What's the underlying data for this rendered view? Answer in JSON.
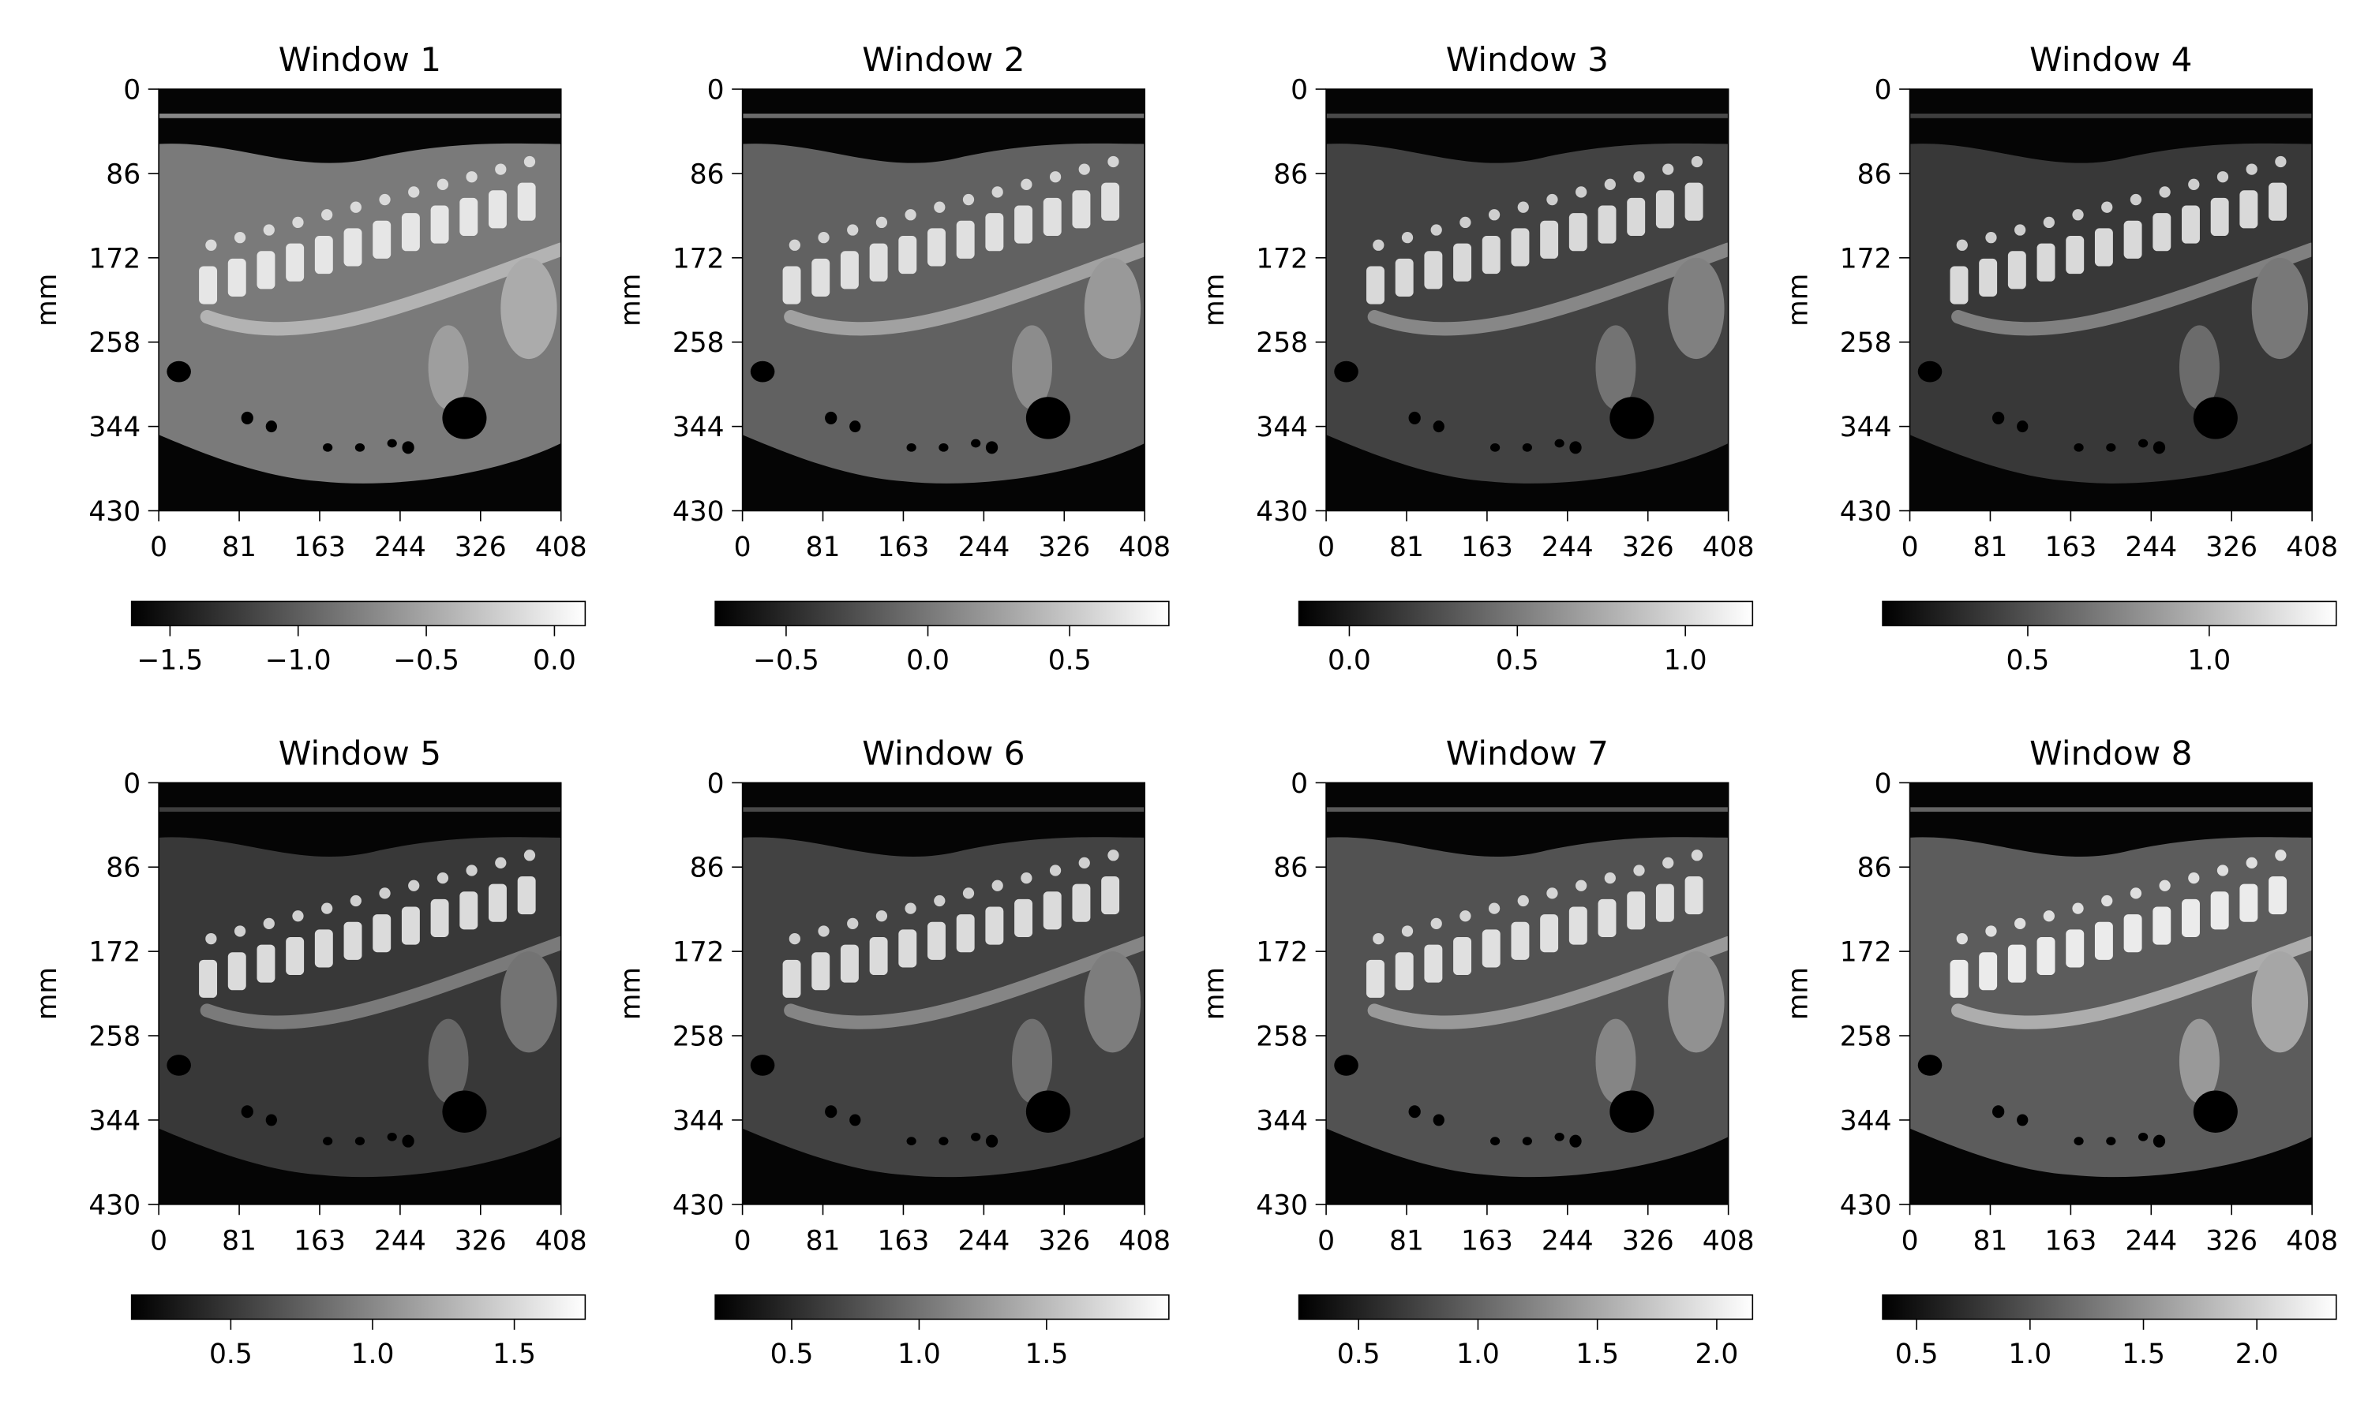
{
  "figure": {
    "panel_count": 8,
    "layout": "2x4 grid of CT sagittal slice images, each with a horizontal colorbar below"
  },
  "chart_data": [
    {
      "type": "heatmap",
      "title": "Window 1",
      "ylabel": "mm",
      "xlabel": "",
      "x_ticks": [
        "0",
        "81",
        "163",
        "244",
        "326",
        "408"
      ],
      "y_ticks": [
        "0",
        "86",
        "172",
        "258",
        "344",
        "430"
      ],
      "xlim": [
        0,
        408
      ],
      "ylim": [
        430,
        0
      ],
      "colormap": "gray",
      "colorbar": {
        "range": [
          -1.65,
          0.12
        ],
        "ticks": [
          -1.5,
          -1.0,
          -0.5,
          0.0
        ],
        "tick_labels": [
          "−1.5",
          "−1.0",
          "−0.5",
          "0.0"
        ]
      },
      "brightness": {
        "background": 0.02,
        "body": 0.48,
        "organ": 0.62,
        "bone": 0.9,
        "air": 0.0
      }
    },
    {
      "type": "heatmap",
      "title": "Window 2",
      "ylabel": "mm",
      "xlabel": "",
      "x_ticks": [
        "0",
        "81",
        "163",
        "244",
        "326",
        "408"
      ],
      "y_ticks": [
        "0",
        "86",
        "172",
        "258",
        "344",
        "430"
      ],
      "xlim": [
        0,
        408
      ],
      "ylim": [
        430,
        0
      ],
      "colormap": "gray",
      "colorbar": {
        "range": [
          -0.75,
          0.85
        ],
        "ticks": [
          -0.5,
          0.0,
          0.5
        ],
        "tick_labels": [
          "−0.5",
          "0.0",
          "0.5"
        ]
      },
      "brightness": {
        "background": 0.02,
        "body": 0.38,
        "organ": 0.55,
        "bone": 0.88,
        "air": 0.0
      }
    },
    {
      "type": "heatmap",
      "title": "Window 3",
      "ylabel": "mm",
      "xlabel": "",
      "x_ticks": [
        "0",
        "81",
        "163",
        "244",
        "326",
        "408"
      ],
      "y_ticks": [
        "0",
        "86",
        "172",
        "258",
        "344",
        "430"
      ],
      "xlim": [
        0,
        408
      ],
      "ylim": [
        430,
        0
      ],
      "colormap": "gray",
      "colorbar": {
        "range": [
          -0.15,
          1.2
        ],
        "ticks": [
          0.0,
          0.5,
          1.0
        ],
        "tick_labels": [
          "0.0",
          "0.5",
          "1.0"
        ]
      },
      "brightness": {
        "background": 0.02,
        "body": 0.26,
        "organ": 0.45,
        "bone": 0.85,
        "air": 0.0
      }
    },
    {
      "type": "heatmap",
      "title": "Window 4",
      "ylabel": "mm",
      "xlabel": "",
      "x_ticks": [
        "0",
        "81",
        "163",
        "244",
        "326",
        "408"
      ],
      "y_ticks": [
        "0",
        "86",
        "172",
        "258",
        "344",
        "430"
      ],
      "xlim": [
        0,
        408
      ],
      "ylim": [
        430,
        0
      ],
      "colormap": "gray",
      "colorbar": {
        "range": [
          0.1,
          1.35
        ],
        "ticks": [
          0.5,
          1.0
        ],
        "tick_labels": [
          "0.5",
          "1.0"
        ]
      },
      "brightness": {
        "background": 0.02,
        "body": 0.22,
        "organ": 0.42,
        "bone": 0.85,
        "air": 0.0
      }
    },
    {
      "type": "heatmap",
      "title": "Window 5",
      "ylabel": "mm",
      "xlabel": "",
      "x_ticks": [
        "0",
        "81",
        "163",
        "244",
        "326",
        "408"
      ],
      "y_ticks": [
        "0",
        "86",
        "172",
        "258",
        "344",
        "430"
      ],
      "xlim": [
        0,
        408
      ],
      "ylim": [
        430,
        0
      ],
      "colormap": "gray",
      "colorbar": {
        "range": [
          0.15,
          1.75
        ],
        "ticks": [
          0.5,
          1.0,
          1.5
        ],
        "tick_labels": [
          "0.5",
          "1.0",
          "1.5"
        ]
      },
      "brightness": {
        "background": 0.02,
        "body": 0.22,
        "organ": 0.4,
        "bone": 0.86,
        "air": 0.0
      }
    },
    {
      "type": "heatmap",
      "title": "Window 6",
      "ylabel": "mm",
      "xlabel": "",
      "x_ticks": [
        "0",
        "81",
        "163",
        "244",
        "326",
        "408"
      ],
      "y_ticks": [
        "0",
        "86",
        "172",
        "258",
        "344",
        "430"
      ],
      "xlim": [
        0,
        408
      ],
      "ylim": [
        430,
        0
      ],
      "colormap": "gray",
      "colorbar": {
        "range": [
          0.2,
          1.98
        ],
        "ticks": [
          0.5,
          1.0,
          1.5
        ],
        "tick_labels": [
          "0.5",
          "1.0",
          "1.5"
        ]
      },
      "brightness": {
        "background": 0.02,
        "body": 0.26,
        "organ": 0.44,
        "bone": 0.86,
        "air": 0.0
      }
    },
    {
      "type": "heatmap",
      "title": "Window 7",
      "ylabel": "mm",
      "xlabel": "",
      "x_ticks": [
        "0",
        "81",
        "163",
        "244",
        "326",
        "408"
      ],
      "y_ticks": [
        "0",
        "86",
        "172",
        "258",
        "344",
        "430"
      ],
      "xlim": [
        0,
        408
      ],
      "ylim": [
        430,
        0
      ],
      "colormap": "gray",
      "colorbar": {
        "range": [
          0.25,
          2.15
        ],
        "ticks": [
          0.5,
          1.0,
          1.5,
          2.0
        ],
        "tick_labels": [
          "0.5",
          "1.0",
          "1.5",
          "2.0"
        ]
      },
      "brightness": {
        "background": 0.02,
        "body": 0.32,
        "organ": 0.52,
        "bone": 0.88,
        "air": 0.0
      }
    },
    {
      "type": "heatmap",
      "title": "Window 8",
      "ylabel": "mm",
      "xlabel": "",
      "x_ticks": [
        "0",
        "81",
        "163",
        "244",
        "326",
        "408"
      ],
      "y_ticks": [
        "0",
        "86",
        "172",
        "258",
        "344",
        "430"
      ],
      "xlim": [
        0,
        408
      ],
      "ylim": [
        430,
        0
      ],
      "colormap": "gray",
      "colorbar": {
        "range": [
          0.35,
          2.35
        ],
        "ticks": [
          0.5,
          1.0,
          1.5,
          2.0
        ],
        "tick_labels": [
          "0.5",
          "1.0",
          "1.5",
          "2.0"
        ]
      },
      "brightness": {
        "background": 0.02,
        "body": 0.36,
        "organ": 0.6,
        "bone": 0.92,
        "air": 0.0
      }
    }
  ]
}
